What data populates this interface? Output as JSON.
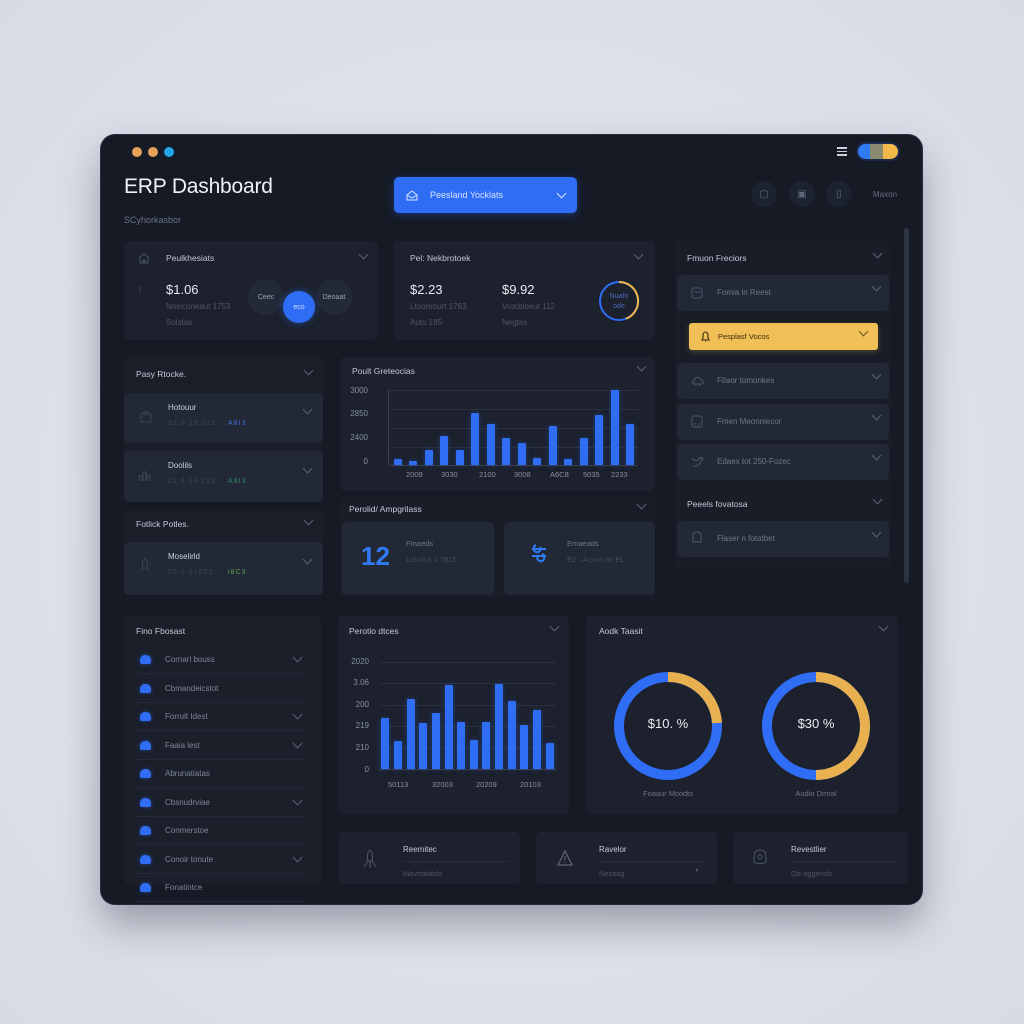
{
  "window": {
    "traffic_lights": [
      "#e3a15a",
      "#e3a15a",
      "#22a8e8"
    ],
    "title": "ERP Dashboard",
    "subtitle": "SCyhorkasbor",
    "menu_icon": "hamburger-icon",
    "theme_toggle": {
      "colors": [
        "#2f7bf5",
        "#8a8a70",
        "#f0b94a"
      ]
    }
  },
  "header": {
    "dropdown": {
      "icon": "inbox-icon",
      "label": "Peesland Yocklats",
      "color": "#2f6df5"
    },
    "actions": [
      {
        "icon": "lock-icon",
        "glyph": "🔒"
      },
      {
        "icon": "refresh-icon",
        "glyph": "⟳"
      },
      {
        "icon": "columns-icon",
        "glyph": "▯"
      }
    ],
    "more_label": "Maxon"
  },
  "summary_cards": [
    {
      "title": "Peulkhesiats",
      "icon": "building-icon",
      "price": "$1.06",
      "line1": "Nosiconeaut 1753",
      "line2": "Solstas",
      "circles": [
        {
          "label": "Ceec",
          "active": false
        },
        {
          "label": "eco",
          "active": true
        },
        {
          "label": "Deoaat",
          "active": false
        }
      ]
    },
    {
      "title": "Pel: Nekbrotoek",
      "values": [
        {
          "price": "$2.23",
          "line1": "Ltoonrourt 1763",
          "line2": "Auto 185"
        },
        {
          "price": "$9.92",
          "line1": "Vrocbloeut 112",
          "line2": "Negtas"
        }
      ],
      "ring": {
        "line1": "Nuafo",
        "line2": "ode",
        "colors": [
          "#2f6df5",
          "#f0b94a"
        ]
      }
    }
  ],
  "left_panels": [
    {
      "title": "Pasy Rtocke.",
      "items": [
        {
          "icon": "bag-icon",
          "name": "Hotouur",
          "meta": "22.0  15.022",
          "tag": "A8I3",
          "tag_color": "#3f6fd9"
        },
        {
          "icon": "chart-icon",
          "name": "Doolils",
          "meta": "22.8  14.231",
          "tag": "A8I3",
          "tag_color": "#2a8a5e"
        }
      ]
    },
    {
      "title": "Fotlick Potles.",
      "items": [
        {
          "icon": "rocket-icon",
          "name": "Moselirld",
          "meta": "20.0  2+022",
          "tag": "i8C3",
          "tag_color": "#5aa04a"
        }
      ]
    }
  ],
  "bar_chart_1": {
    "title": "Poult Greteocias"
  },
  "mid_panel": {
    "title": "Perolid/ Ampgrilass",
    "tiles": [
      {
        "big": "12",
        "title": "Fmaeds",
        "sub": "Lsrolich 1 7815"
      },
      {
        "icon": "tools-icon",
        "title": "Emaeads",
        "sub": "E2 · Acson tin EL"
      }
    ]
  },
  "right_panel": {
    "title": "Fmuon Freciors",
    "items": [
      {
        "icon": "tag-icon",
        "label": "Fomia in Reest"
      },
      {
        "icon": "bell-icon",
        "label": "Pesplasf Vocos",
        "highlight": true,
        "color": "#f0bf55"
      },
      {
        "icon": "cloud-icon",
        "label": "Ftlaor tomonkes"
      },
      {
        "icon": "device-icon",
        "label": "Fmen Meonniecor"
      },
      {
        "icon": "bird-icon",
        "label": "Edaex tot 250-Fozec"
      }
    ],
    "section2_title": "Peeels fovatosa",
    "section2_items": [
      {
        "icon": "bell-outline-icon",
        "label": "Flaser n fotatbet"
      }
    ]
  },
  "list_panel": {
    "title": "Fino Fbosast",
    "items": [
      {
        "label": "Cornarl bouss",
        "chevron": true
      },
      {
        "label": "Cbmandeicstot",
        "chevron": false
      },
      {
        "label": "Forrult Idest",
        "chevron": true
      },
      {
        "label": "Faaia lest",
        "chevron": true
      },
      {
        "label": "Abrunatiatas",
        "chevron": false
      },
      {
        "label": "Cbsnudrviae",
        "chevron": true
      },
      {
        "label": "Conmerstoe",
        "chevron": false
      },
      {
        "label": "Conoir tonute",
        "chevron": true
      },
      {
        "label": "Fonatintce",
        "chevron": false
      }
    ]
  },
  "bar_chart_2": {
    "title": "Perotio dtces"
  },
  "donut_panel": {
    "title": "Aodk Taasit",
    "donuts": [
      {
        "value": "$10. %",
        "caption": "Foaaur Mcodts"
      },
      {
        "value": "$30 %",
        "caption": "Audio Dmral"
      }
    ]
  },
  "stat_cards": [
    {
      "icon": "rocket-icon",
      "title": "Reemitec",
      "sub": "Mavrtadeds",
      "chevron": false
    },
    {
      "icon": "warning-icon",
      "title": "Ravelor",
      "sub": "Nesitag",
      "chevron": true
    },
    {
      "icon": "avatar-icon",
      "title": "Revestlier",
      "sub": "Oe oggends",
      "chevron": false
    }
  ],
  "colors": {
    "accent": "#2f6df5",
    "warning": "#f0bf55",
    "bg": "#151a25",
    "card": "#1c212d"
  },
  "chart_data": [
    {
      "type": "bar",
      "title": "Poult Greteocias",
      "yticks": [
        "0",
        "2400",
        "2850",
        "3000"
      ],
      "ylim": [
        0,
        3000
      ],
      "xticks": [
        "2009",
        "3030",
        "2100",
        "3008",
        "A6C8",
        "5035",
        "2233"
      ],
      "values": [
        230,
        180,
        600,
        1150,
        620,
        2100,
        1630,
        1080,
        890,
        280,
        1580,
        240,
        1070,
        2000,
        3000,
        1660
      ],
      "grid": true
    },
    {
      "type": "bar",
      "title": "Perotio dtces",
      "yticks": [
        "0",
        "210",
        "219",
        "200",
        "3.06",
        "2020"
      ],
      "ylim": [
        0,
        3000
      ],
      "xticks": [
        "50113",
        "32003",
        "20209",
        "20103"
      ],
      "values": [
        1430,
        790,
        1960,
        1280,
        1570,
        2350,
        1330,
        810,
        1310,
        2390,
        1900,
        1230,
        1660,
        730
      ],
      "grid": true
    },
    {
      "type": "pie",
      "title": "Aodk Taasit",
      "series": [
        {
          "name": "Foaaur Mcodts",
          "label": "$10. %",
          "values": [
            72,
            28
          ],
          "colors": [
            "#2f6df5",
            "#f0b94a"
          ]
        },
        {
          "name": "Audio Dmral",
          "label": "$30 %",
          "values": [
            50,
            50
          ],
          "colors": [
            "#2f6df5",
            "#f0b94a"
          ]
        }
      ]
    }
  ]
}
